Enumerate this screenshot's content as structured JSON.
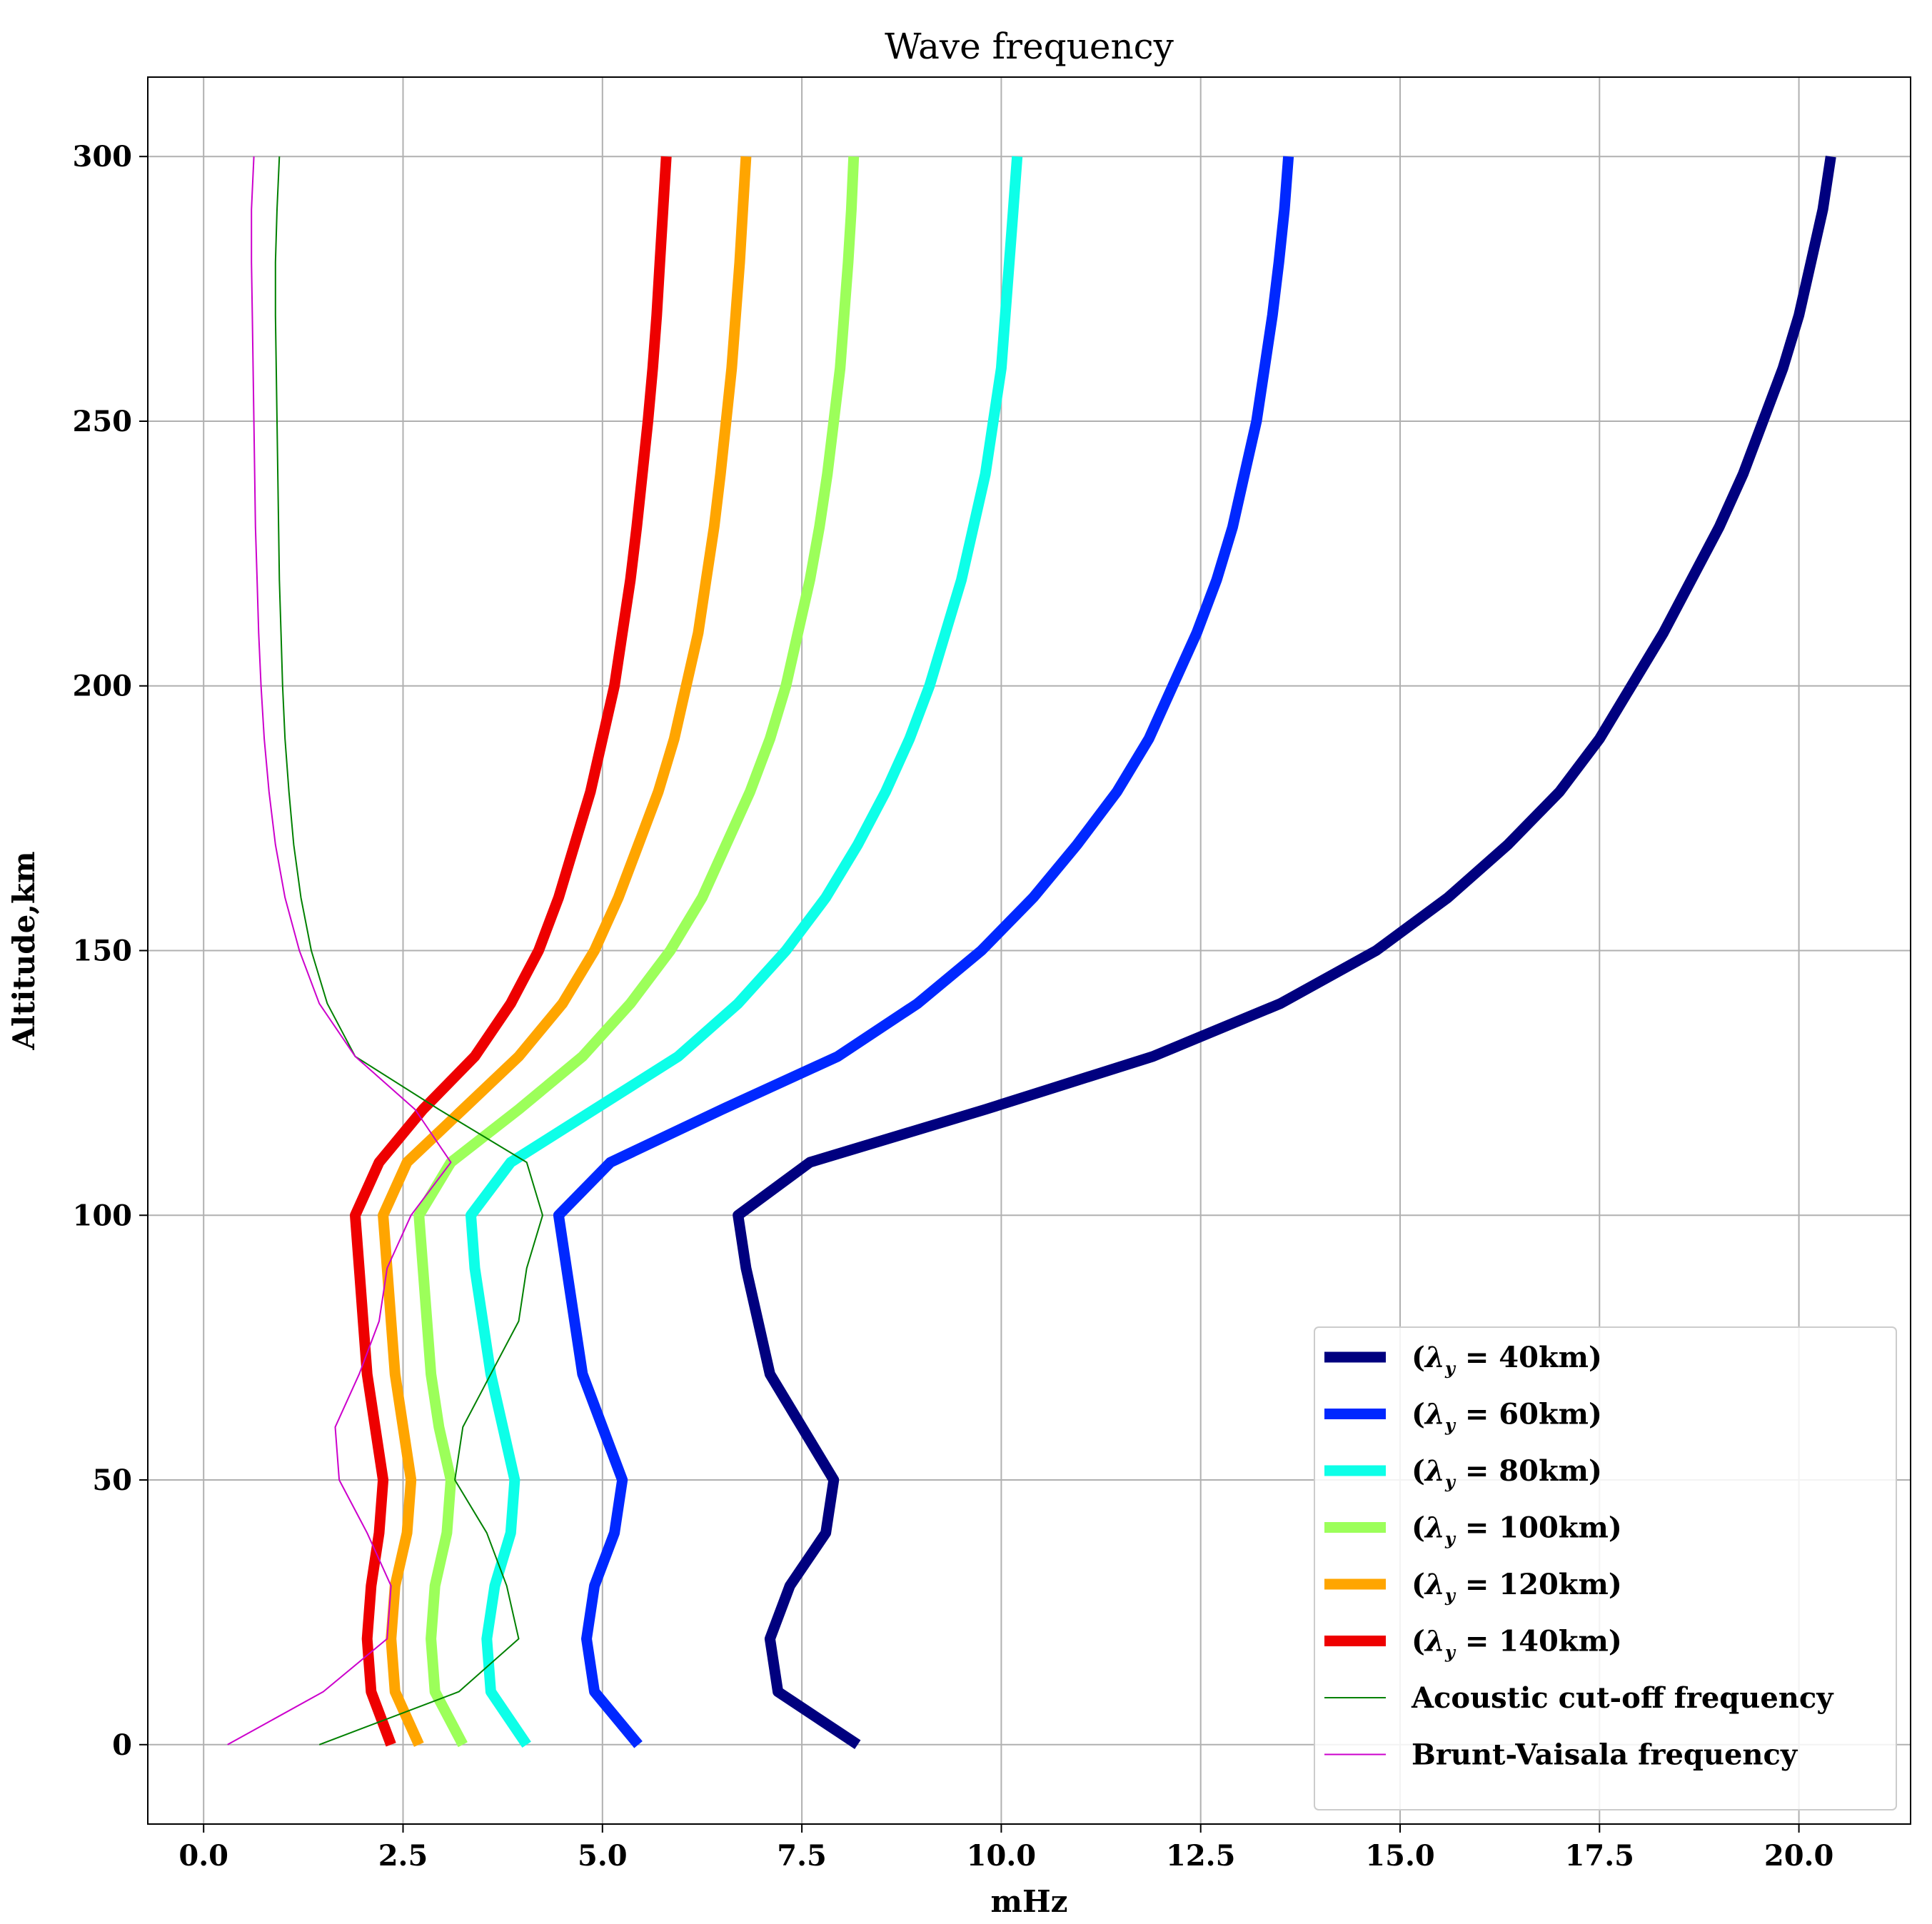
{
  "chart_data": {
    "type": "line",
    "title": "Wave frequency",
    "xlabel": "mHz",
    "ylabel": "Altitude,km",
    "xlim": [
      -0.7,
      21.4
    ],
    "ylim": [
      -15,
      315
    ],
    "xticks": [
      0.0,
      2.5,
      5.0,
      7.5,
      10.0,
      12.5,
      15.0,
      17.5,
      20.0
    ],
    "xtick_labels": [
      "0.0",
      "2.5",
      "5.0",
      "7.5",
      "10.0",
      "12.5",
      "15.0",
      "17.5",
      "20.0"
    ],
    "yticks": [
      0,
      50,
      100,
      150,
      200,
      250,
      300
    ],
    "ytick_labels": [
      "0",
      "50",
      "100",
      "150",
      "200",
      "250",
      "300"
    ],
    "grid": true,
    "legend_position": "lower-right",
    "series": [
      {
        "name": "(λy = 40km)",
        "name_prefix": "(",
        "name_symbol": "λ",
        "name_subscript": "y",
        "name_suffix": " = 40km)",
        "color": "#00007f",
        "width": "thick",
        "altitude": [
          0,
          10,
          20,
          30,
          40,
          50,
          60,
          70,
          80,
          90,
          100,
          110,
          120,
          130,
          140,
          150,
          160,
          170,
          180,
          190,
          200,
          210,
          220,
          230,
          240,
          250,
          260,
          270,
          280,
          290,
          300
        ],
        "frequency": [
          8.2,
          7.2,
          7.1,
          7.35,
          7.8,
          7.9,
          7.5,
          7.1,
          6.95,
          6.8,
          6.7,
          7.6,
          9.8,
          11.9,
          13.5,
          14.7,
          15.6,
          16.35,
          17.0,
          17.5,
          17.9,
          18.3,
          18.65,
          19.0,
          19.3,
          19.55,
          19.8,
          20.0,
          20.15,
          20.3,
          20.4
        ]
      },
      {
        "name": "(λy = 60km)",
        "name_prefix": "(",
        "name_symbol": "λ",
        "name_subscript": "y",
        "name_suffix": " = 60km)",
        "color": "#0028ff",
        "width": "thick",
        "altitude": [
          0,
          10,
          20,
          30,
          40,
          50,
          60,
          70,
          80,
          90,
          100,
          110,
          120,
          130,
          140,
          150,
          160,
          170,
          180,
          190,
          200,
          210,
          220,
          230,
          240,
          250,
          260,
          270,
          280,
          290,
          300
        ],
        "frequency": [
          5.45,
          4.9,
          4.8,
          4.9,
          5.15,
          5.25,
          5.0,
          4.75,
          4.65,
          4.55,
          4.45,
          5.1,
          6.5,
          7.95,
          8.95,
          9.75,
          10.4,
          10.95,
          11.45,
          11.85,
          12.15,
          12.45,
          12.7,
          12.9,
          13.05,
          13.2,
          13.3,
          13.4,
          13.48,
          13.55,
          13.6
        ]
      },
      {
        "name": "(λy = 80km)",
        "name_prefix": "(",
        "name_symbol": "λ",
        "name_subscript": "y",
        "name_suffix": " = 80km)",
        "color": "#0dffe8",
        "width": "thick",
        "altitude": [
          0,
          10,
          20,
          30,
          40,
          50,
          60,
          70,
          80,
          90,
          100,
          110,
          120,
          130,
          140,
          150,
          160,
          170,
          180,
          190,
          200,
          210,
          220,
          230,
          240,
          250,
          260,
          270,
          280,
          290,
          300
        ],
        "frequency": [
          4.05,
          3.6,
          3.55,
          3.65,
          3.85,
          3.9,
          3.75,
          3.6,
          3.5,
          3.4,
          3.35,
          3.85,
          4.9,
          5.95,
          6.7,
          7.3,
          7.8,
          8.2,
          8.55,
          8.85,
          9.1,
          9.3,
          9.5,
          9.65,
          9.8,
          9.9,
          10.0,
          10.05,
          10.1,
          10.15,
          10.2
        ]
      },
      {
        "name": "(λy = 100km)",
        "name_prefix": "(",
        "name_symbol": "λ",
        "name_subscript": "y",
        "name_suffix": " = 100km)",
        "color": "#9cff5a",
        "width": "thick",
        "altitude": [
          0,
          10,
          20,
          30,
          40,
          50,
          60,
          70,
          80,
          90,
          100,
          110,
          120,
          130,
          140,
          150,
          160,
          170,
          180,
          190,
          200,
          210,
          220,
          230,
          240,
          250,
          260,
          270,
          280,
          290,
          300
        ],
        "frequency": [
          3.25,
          2.9,
          2.85,
          2.9,
          3.05,
          3.1,
          2.95,
          2.85,
          2.8,
          2.75,
          2.7,
          3.1,
          3.95,
          4.75,
          5.35,
          5.85,
          6.25,
          6.55,
          6.85,
          7.1,
          7.3,
          7.45,
          7.6,
          7.72,
          7.82,
          7.9,
          7.98,
          8.03,
          8.08,
          8.12,
          8.15
        ]
      },
      {
        "name": "(λy = 120km)",
        "name_prefix": "(",
        "name_symbol": "λ",
        "name_subscript": "y",
        "name_suffix": " = 120km)",
        "color": "#ffa500",
        "width": "thick",
        "altitude": [
          0,
          10,
          20,
          30,
          40,
          50,
          60,
          70,
          80,
          90,
          100,
          110,
          120,
          130,
          140,
          150,
          160,
          170,
          180,
          190,
          200,
          210,
          220,
          230,
          240,
          250,
          260,
          270,
          280,
          290,
          300
        ],
        "frequency": [
          2.7,
          2.4,
          2.35,
          2.4,
          2.55,
          2.6,
          2.5,
          2.4,
          2.35,
          2.3,
          2.25,
          2.55,
          3.25,
          3.95,
          4.5,
          4.9,
          5.2,
          5.45,
          5.7,
          5.9,
          6.05,
          6.2,
          6.3,
          6.4,
          6.48,
          6.55,
          6.62,
          6.67,
          6.72,
          6.76,
          6.8
        ]
      },
      {
        "name": "(λy = 140km)",
        "name_prefix": "(",
        "name_symbol": "λ",
        "name_subscript": "y",
        "name_suffix": " = 140km)",
        "color": "#ee0000",
        "width": "thick",
        "altitude": [
          0,
          10,
          20,
          30,
          40,
          50,
          60,
          70,
          80,
          90,
          100,
          110,
          120,
          130,
          140,
          150,
          160,
          170,
          180,
          190,
          200,
          210,
          220,
          230,
          240,
          250,
          260,
          270,
          280,
          290,
          300
        ],
        "frequency": [
          2.35,
          2.1,
          2.05,
          2.1,
          2.2,
          2.25,
          2.15,
          2.05,
          2.0,
          1.95,
          1.9,
          2.2,
          2.75,
          3.4,
          3.85,
          4.2,
          4.45,
          4.65,
          4.85,
          5.0,
          5.15,
          5.25,
          5.35,
          5.43,
          5.5,
          5.57,
          5.63,
          5.68,
          5.72,
          5.76,
          5.8
        ]
      },
      {
        "name": "Acoustic cut-off frequency",
        "color": "#008000",
        "width": "thin",
        "altitude": [
          0,
          10,
          20,
          30,
          40,
          50,
          60,
          70,
          80,
          90,
          100,
          110,
          120,
          130,
          140,
          150,
          160,
          170,
          180,
          190,
          200,
          210,
          220,
          230,
          240,
          250,
          260,
          270,
          280,
          290,
          300
        ],
        "frequency": [
          1.45,
          3.2,
          3.95,
          3.8,
          3.55,
          3.15,
          3.25,
          3.6,
          3.95,
          4.05,
          4.25,
          4.05,
          2.95,
          1.9,
          1.55,
          1.35,
          1.22,
          1.13,
          1.07,
          1.02,
          0.99,
          0.97,
          0.95,
          0.94,
          0.93,
          0.92,
          0.91,
          0.9,
          0.9,
          0.92,
          0.95
        ]
      },
      {
        "name": "Brunt-Vaisala frequency",
        "color": "#cc00cc",
        "width": "thin",
        "altitude": [
          0,
          10,
          20,
          30,
          40,
          50,
          60,
          70,
          80,
          90,
          100,
          110,
          120,
          130,
          140,
          150,
          160,
          170,
          180,
          190,
          200,
          210,
          220,
          230,
          240,
          250,
          260,
          270,
          280,
          290,
          300
        ],
        "frequency": [
          0.3,
          1.5,
          2.3,
          2.35,
          2.05,
          1.7,
          1.65,
          1.95,
          2.2,
          2.3,
          2.6,
          3.1,
          2.65,
          1.9,
          1.45,
          1.2,
          1.02,
          0.9,
          0.82,
          0.76,
          0.72,
          0.69,
          0.67,
          0.65,
          0.64,
          0.63,
          0.62,
          0.61,
          0.6,
          0.6,
          0.63
        ]
      }
    ]
  }
}
